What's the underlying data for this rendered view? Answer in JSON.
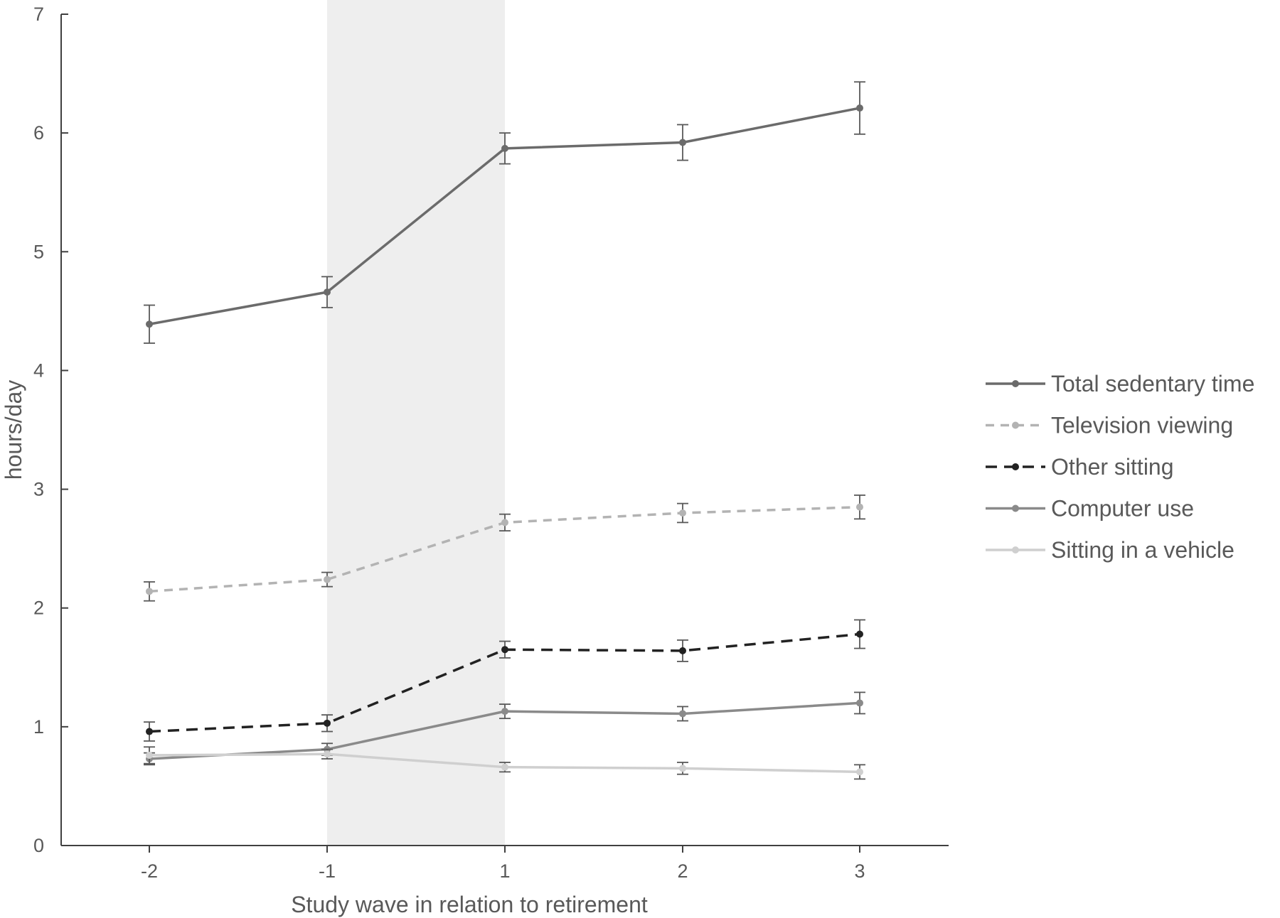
{
  "chart_data": {
    "type": "line",
    "title": "",
    "xlabel": "Study wave in relation to retirement",
    "ylabel": "hours/day",
    "categories": [
      "-2",
      "-1",
      "1",
      "2",
      "3"
    ],
    "ylim": [
      0,
      7
    ],
    "yticks": [
      "0",
      "1",
      "2",
      "3",
      "4",
      "5",
      "6",
      "7"
    ],
    "grid": false,
    "legend_position": "right",
    "shaded_band": {
      "from": "-1",
      "to": "1",
      "color": "#eeeeee"
    },
    "series": [
      {
        "name": "Total sedentary time",
        "values": [
          4.39,
          4.66,
          5.87,
          5.92,
          6.21
        ],
        "error": [
          0.16,
          0.13,
          0.13,
          0.15,
          0.22
        ],
        "color": "#6b6b6b",
        "dash": "solid"
      },
      {
        "name": "Television viewing",
        "values": [
          2.14,
          2.24,
          2.72,
          2.8,
          2.85
        ],
        "error": [
          0.08,
          0.06,
          0.07,
          0.08,
          0.1
        ],
        "color": "#b3b3b3",
        "dash": "dashed"
      },
      {
        "name": "Other sitting",
        "values": [
          0.96,
          1.03,
          1.65,
          1.64,
          1.78
        ],
        "error": [
          0.08,
          0.07,
          0.07,
          0.09,
          0.12
        ],
        "color": "#222222",
        "dash": "dashed"
      },
      {
        "name": "Computer use",
        "values": [
          0.73,
          0.81,
          1.13,
          1.11,
          1.2
        ],
        "error": [
          0.05,
          0.05,
          0.06,
          0.06,
          0.09
        ],
        "color": "#8a8a8a",
        "dash": "solid"
      },
      {
        "name": "Sitting in a vehicle",
        "values": [
          0.76,
          0.77,
          0.66,
          0.65,
          0.62
        ],
        "error": [
          0.07,
          0.04,
          0.04,
          0.05,
          0.06
        ],
        "color": "#cfcfcf",
        "dash": "solid"
      }
    ]
  }
}
